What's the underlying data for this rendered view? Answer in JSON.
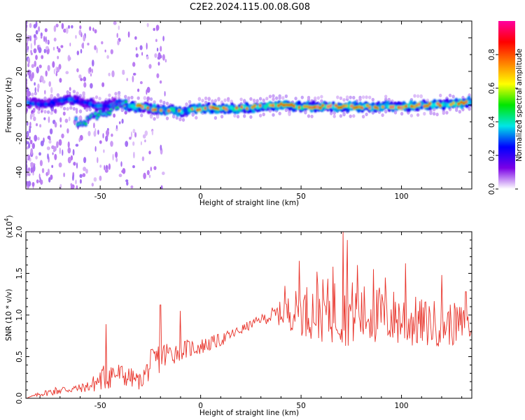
{
  "title": "C2E2.2024.115.00.08.G08",
  "chart_data": [
    {
      "type": "heatmap",
      "xlabel": "Height of straight line (km)",
      "ylabel": "Frequency (Hz)",
      "xlim": [
        -87,
        135
      ],
      "ylim": [
        -50,
        50
      ],
      "xticks": [
        -50,
        0,
        50,
        100
      ],
      "yticks": [
        -40,
        -20,
        0,
        20,
        40
      ],
      "colorbar": {
        "label": "Normalized spectral amplitude",
        "range": [
          0,
          1
        ],
        "ticks": [
          "0.0",
          "0.2",
          "0.4",
          "0.6",
          "0.8"
        ],
        "colormap": [
          "#ffffff",
          "#7a00e6",
          "#0000ff",
          "#00e6e6",
          "#00e600",
          "#ffff00",
          "#ff8000",
          "#ff0000",
          "#ff00a0"
        ]
      },
      "ridge": {
        "x": [
          -85,
          -80,
          -75,
          -70,
          -65,
          -60,
          -55,
          -50,
          -45,
          -40,
          -35,
          -30,
          -25,
          -20,
          -15,
          -10,
          -5,
          0,
          10,
          20,
          30,
          40,
          50,
          60,
          70,
          80,
          90,
          100,
          110,
          120,
          130,
          135
        ],
        "y": [
          1,
          1,
          1,
          2,
          3,
          2,
          1,
          -1,
          0,
          2,
          -1,
          -1,
          -2,
          -3,
          -3,
          -4,
          -3,
          -2,
          -2,
          -2,
          -1,
          0,
          -1,
          -1,
          -1,
          -1,
          -1,
          -1,
          0,
          0,
          1,
          2
        ]
      },
      "secondary_ridge": {
        "x": [
          -62,
          -58,
          -55,
          -50,
          -45,
          -40,
          -37
        ],
        "y": [
          -10,
          -10,
          -8,
          -5,
          -3,
          1,
          4
        ]
      }
    },
    {
      "type": "line",
      "xlabel": "Height of straight line (km)",
      "ylabel": "SNR (10 * v/v)",
      "scale_label": "(x10",
      "scale_exp": "4",
      "xlim": [
        -87,
        135
      ],
      "ylim": [
        0,
        2.0
      ],
      "xticks": [
        -50,
        0,
        50,
        100
      ],
      "yticks": [
        "0.0",
        "0.5",
        "1.0",
        "1.5",
        "2.0"
      ],
      "color": "#e8332a",
      "envelope": {
        "x": [
          -87,
          -80,
          -70,
          -60,
          -55,
          -50,
          -45,
          -40,
          -35,
          -30,
          -25,
          -20,
          -10,
          0,
          10,
          20,
          30,
          40,
          50,
          60,
          70,
          80,
          90,
          100,
          110,
          120,
          130,
          135
        ],
        "mean": [
          0.0,
          0.05,
          0.1,
          0.12,
          0.15,
          0.22,
          0.3,
          0.28,
          0.25,
          0.2,
          0.4,
          0.5,
          0.58,
          0.62,
          0.7,
          0.82,
          0.95,
          1.02,
          1.05,
          1.05,
          1.05,
          1.0,
          1.0,
          0.95,
          0.9,
          0.9,
          0.88,
          0.85
        ],
        "spread": [
          0.0,
          0.03,
          0.06,
          0.05,
          0.08,
          0.15,
          0.2,
          0.15,
          0.12,
          0.1,
          0.18,
          0.2,
          0.12,
          0.1,
          0.08,
          0.06,
          0.05,
          0.15,
          0.3,
          0.38,
          0.42,
          0.38,
          0.35,
          0.35,
          0.3,
          0.28,
          0.25,
          0.22
        ]
      },
      "peaks": [
        {
          "x": -47,
          "y": 0.89
        },
        {
          "x": -20,
          "y": 1.12
        },
        {
          "x": -10,
          "y": 1.05
        },
        {
          "x": 42,
          "y": 1.35
        },
        {
          "x": 49,
          "y": 1.65
        },
        {
          "x": 58,
          "y": 1.52
        },
        {
          "x": 66,
          "y": 1.58
        },
        {
          "x": 71,
          "y": 2.0
        },
        {
          "x": 73,
          "y": 1.9
        },
        {
          "x": 78,
          "y": 1.6
        },
        {
          "x": 86,
          "y": 1.55
        },
        {
          "x": 92,
          "y": 1.45
        },
        {
          "x": 102,
          "y": 1.62
        },
        {
          "x": 120,
          "y": 1.48
        },
        {
          "x": 132,
          "y": 1.28
        }
      ]
    }
  ]
}
